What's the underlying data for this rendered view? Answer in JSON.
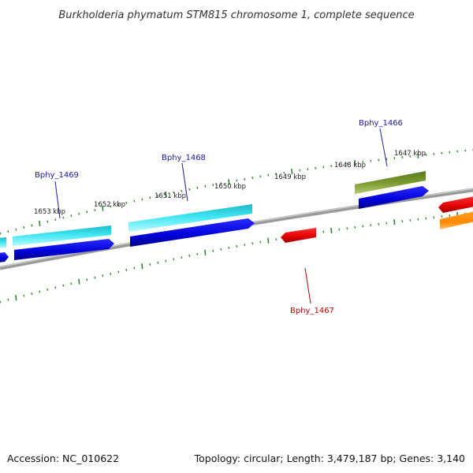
{
  "title": "Burkholderia phymatum STM815 chromosome 1, complete sequence",
  "ticks": [
    "1653 kbp",
    "1652 kbp",
    "1651 kbp",
    "1650 kbp",
    "1649 kbp",
    "1648 kbp",
    "1647 kbp"
  ],
  "genes": {
    "bphy_1469": "Bphy_1469",
    "bphy_1468": "Bphy_1468",
    "bphy_1466": "Bphy_1466",
    "bphy_1467": "Bphy_1467"
  },
  "footer": {
    "accession": "Accession: NC_010622",
    "stats": "Topology: circular; Length: 3,479,187 bp; Genes: 3,140"
  },
  "colors": {
    "cyan": "#22d8e8",
    "blue": "#0a0af0",
    "olive": "#6b8e23",
    "red": "#f01010",
    "orange": "#ff8c00",
    "tick": "#2e8b2e",
    "backbone": "#8a8a8a"
  }
}
